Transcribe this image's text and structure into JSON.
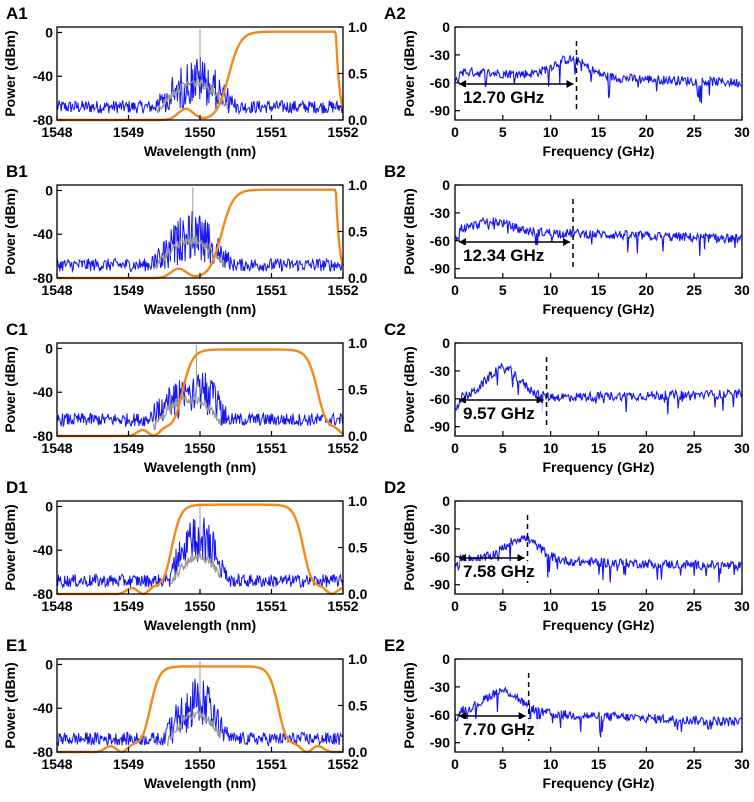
{
  "figure": {
    "colors": {
      "blue": "#1515ee",
      "gray": "#9a9a9a",
      "orange": "#f28a1a",
      "black": "#000000"
    },
    "left_axis": {
      "xlabel": "Wavelength (nm)",
      "ylabel": "Power (dBm)",
      "xticks": [
        "1548",
        "1549",
        "1550",
        "1551",
        "1552"
      ],
      "yticks_left": [
        "0",
        "-40",
        "-80"
      ],
      "yticks_right": [
        "1.0",
        "0.5",
        "0.0"
      ]
    },
    "right_axis": {
      "xlabel": "Frequency (GHz)",
      "ylabel": "Power (dBm)",
      "xticks": [
        "0",
        "5",
        "10",
        "15",
        "20",
        "25",
        "30"
      ],
      "yticks": [
        "0",
        "-30",
        "-60",
        "-90"
      ]
    }
  },
  "chart_data": [
    {
      "panel": "A1",
      "type": "line",
      "label": "A1",
      "x_range": [
        1548,
        1552
      ],
      "ylim_left": [
        -80,
        5
      ],
      "ylim_right": [
        0,
        1
      ],
      "xlabel": "Wavelength (nm)",
      "ylabel": "Power (dBm)",
      "spectrum": {
        "start": 1549.35,
        "end": 1550.5,
        "peak": -20,
        "floor": -68,
        "center": 1550.0
      },
      "filter": {
        "type": "edge",
        "x_edge": 1550.4,
        "rise_width": 0.25,
        "max": 0.95,
        "dip_center": 1549.8,
        "dip_depth": 0.12,
        "fall_at": 1551.9
      }
    },
    {
      "panel": "A2",
      "type": "line",
      "label": "A2",
      "xlim": [
        0,
        30
      ],
      "ylim": [
        -100,
        0
      ],
      "xlabel": "Frequency (GHz)",
      "ylabel": "Power (dBm)",
      "annotation": {
        "text": "12.70 GHz",
        "value": 12.7
      },
      "rf": {
        "peak_x": 12.0,
        "peak_y": -30,
        "base_start": -48,
        "base_end": -60
      }
    },
    {
      "panel": "B1",
      "type": "line",
      "label": "B1",
      "x_range": [
        1548,
        1552
      ],
      "ylim_left": [
        -80,
        5
      ],
      "ylim_right": [
        0,
        1
      ],
      "xlabel": "Wavelength (nm)",
      "ylabel": "Power (dBm)",
      "spectrum": {
        "start": 1549.3,
        "end": 1550.45,
        "peak": -18,
        "floor": -68,
        "center": 1549.9
      },
      "filter": {
        "type": "edge",
        "x_edge": 1550.3,
        "rise_width": 0.25,
        "max": 0.95,
        "dip_center": 1549.7,
        "dip_depth": 0.1,
        "fall_at": 1551.9
      }
    },
    {
      "panel": "B2",
      "type": "line",
      "label": "B2",
      "xlim": [
        0,
        30
      ],
      "ylim": [
        -100,
        0
      ],
      "xlabel": "Frequency (GHz)",
      "ylabel": "Power (dBm)",
      "annotation": {
        "text": "12.34 GHz",
        "value": 12.34
      },
      "rf": {
        "peak_x": 4.0,
        "peak_y": -38,
        "base_start": -48,
        "base_end": -58
      }
    },
    {
      "panel": "C1",
      "type": "line",
      "label": "C1",
      "x_range": [
        1548,
        1552
      ],
      "ylim_left": [
        -80,
        5
      ],
      "ylim_right": [
        0,
        1
      ],
      "xlabel": "Wavelength (nm)",
      "ylabel": "Power (dBm)",
      "spectrum": {
        "start": 1549.3,
        "end": 1550.4,
        "peak": -12,
        "floor": -65,
        "center": 1549.95
      },
      "filter": {
        "type": "band",
        "x_rise": 1549.75,
        "x_fall": 1551.65,
        "rise_width": 0.22,
        "max": 0.93
      }
    },
    {
      "panel": "C2",
      "type": "line",
      "label": "C2",
      "xlim": [
        0,
        30
      ],
      "ylim": [
        -100,
        0
      ],
      "xlabel": "Frequency (GHz)",
      "ylabel": "Power (dBm)",
      "annotation": {
        "text": "9.57 GHz",
        "value": 9.57
      },
      "rf": {
        "peak_x": 5.0,
        "peak_y": -28,
        "base_start": -60,
        "base_end": -55
      }
    },
    {
      "panel": "D1",
      "type": "line",
      "label": "D1",
      "x_range": [
        1548,
        1552
      ],
      "ylim_left": [
        -80,
        5
      ],
      "ylim_right": [
        0,
        1
      ],
      "xlabel": "Wavelength (nm)",
      "ylabel": "Power (dBm)",
      "spectrum": {
        "start": 1549.55,
        "end": 1550.4,
        "peak": -8,
        "floor": -68,
        "center": 1550.0
      },
      "filter": {
        "type": "band",
        "x_rise": 1549.6,
        "x_fall": 1551.45,
        "rise_width": 0.2,
        "max": 0.96
      }
    },
    {
      "panel": "D2",
      "type": "line",
      "label": "D2",
      "xlim": [
        0,
        30
      ],
      "ylim": [
        -100,
        0
      ],
      "xlabel": "Frequency (GHz)",
      "ylabel": "Power (dBm)",
      "annotation": {
        "text": "7.58 GHz",
        "value": 7.58
      },
      "rf": {
        "peak_x": 7.0,
        "peak_y": -38,
        "base_start": -62,
        "base_end": -70
      }
    },
    {
      "panel": "E1",
      "type": "line",
      "label": "E1",
      "x_range": [
        1548,
        1552
      ],
      "ylim_left": [
        -80,
        5
      ],
      "ylim_right": [
        0,
        1
      ],
      "xlabel": "Wavelength (nm)",
      "ylabel": "Power (dBm)",
      "spectrum": {
        "start": 1549.5,
        "end": 1550.4,
        "peak": -12,
        "floor": -68,
        "center": 1550.0
      },
      "filter": {
        "type": "band",
        "x_rise": 1549.3,
        "x_fall": 1551.1,
        "rise_width": 0.2,
        "max": 0.92
      }
    },
    {
      "panel": "E2",
      "type": "line",
      "label": "E2",
      "xlim": [
        0,
        30
      ],
      "ylim": [
        -100,
        0
      ],
      "xlabel": "Frequency (GHz)",
      "ylabel": "Power (dBm)",
      "annotation": {
        "text": "7.70 GHz",
        "value": 7.7
      },
      "rf": {
        "peak_x": 5.0,
        "peak_y": -32,
        "base_start": -55,
        "base_end": -68
      }
    }
  ]
}
